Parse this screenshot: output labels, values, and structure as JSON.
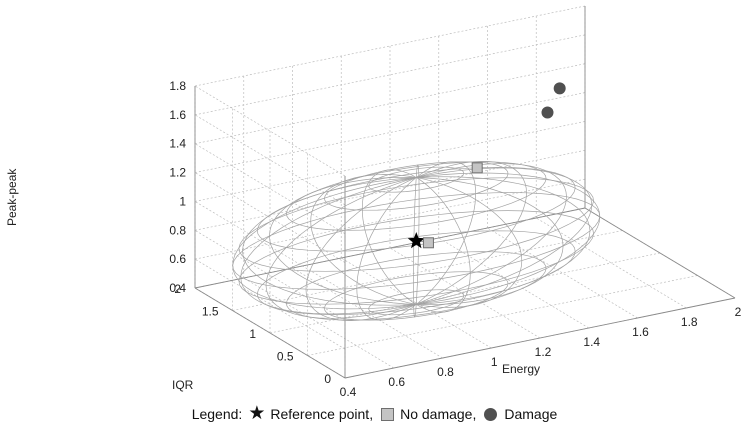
{
  "chart_data": {
    "type": "scatter",
    "title": "",
    "view": "3d",
    "axes": {
      "x": {
        "label": "Energy",
        "range": [
          0.4,
          2
        ],
        "ticks": [
          "0.4",
          "0.6",
          "0.8",
          "1",
          "1.2",
          "1.4",
          "1.6",
          "1.8",
          "2"
        ]
      },
      "y": {
        "label": "IQR",
        "range": [
          0,
          2
        ],
        "ticks": [
          "0",
          "0.5",
          "1",
          "1.5",
          "2"
        ]
      },
      "z": {
        "label": "Peak-peak",
        "range": [
          0.4,
          1.8
        ],
        "ticks": [
          "0.4",
          "0.6",
          "0.8",
          "1",
          "1.2",
          "1.4",
          "1.6",
          "1.8"
        ]
      }
    },
    "grid": true,
    "ellipsoid": {
      "shape": "wireframe ellipsoid",
      "center": [
        1.0,
        1.0,
        0.83
      ],
      "radii": [
        0.72,
        0.72,
        0.44
      ]
    },
    "series": [
      {
        "name": "Reference point",
        "marker": "star",
        "color": "#000000",
        "points": [
          {
            "x": 1.0,
            "y": 1.0,
            "z": 0.83
          }
        ]
      },
      {
        "name": "No damage",
        "marker": "square",
        "color": "#c4c4c4",
        "points": [
          {
            "x": 1.05,
            "y": 1.0,
            "z": 0.8
          },
          {
            "x": 1.25,
            "y": 1.0,
            "z": 1.25
          }
        ]
      },
      {
        "name": "Damage",
        "marker": "circle",
        "color": "#505050",
        "points": [
          {
            "x": 1.65,
            "y": 1.2,
            "z": 1.6
          },
          {
            "x": 1.6,
            "y": 1.2,
            "z": 1.45
          }
        ]
      }
    ],
    "legend": {
      "position": "bottom",
      "title": "Legend:",
      "items": [
        "Reference point,",
        "No damage,",
        "Damage"
      ]
    }
  }
}
